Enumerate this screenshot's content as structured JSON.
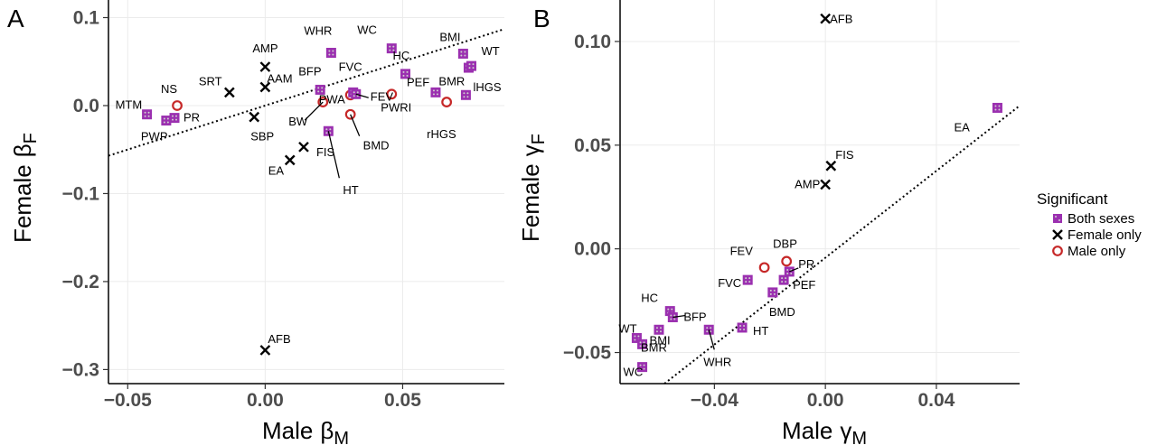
{
  "colors": {
    "both": "#9b30b0",
    "both_dot": "#cfcfcf",
    "female_only": "#000000",
    "male_only": "#c62828",
    "grid": "#ebebeb",
    "tick_text": "#4d4d4d"
  },
  "legend": {
    "title": "Significant",
    "items": [
      {
        "key": "both",
        "label": "Both sexes",
        "marker": "filled-square"
      },
      {
        "key": "female",
        "label": "Female only",
        "marker": "x-cross"
      },
      {
        "key": "male",
        "label": "Male only",
        "marker": "open-circle"
      }
    ],
    "placement": "right"
  },
  "chart_data": [
    {
      "panel": "A",
      "type": "scatter",
      "xlabel": "Male",
      "xlabel_symbol": "β",
      "xlabel_sub": "M",
      "ylabel": "Female",
      "ylabel_symbol": "β",
      "ylabel_sub": "F",
      "xlim": [
        -0.057,
        0.087
      ],
      "ylim": [
        -0.316,
        0.12
      ],
      "xticks": [
        -0.05,
        0,
        0.05
      ],
      "xtick_labels": [
        "−0.05",
        "0.00",
        "0.05"
      ],
      "yticks": [
        0.1,
        0,
        -0.1,
        -0.2,
        -0.3
      ],
      "ytick_labels": [
        "0.1",
        "0.0",
        "−0.1",
        "−0.2",
        "−0.3"
      ],
      "grid": true,
      "fit_line": {
        "style": "dotted",
        "x": [
          -0.057,
          0.087
        ],
        "y": [
          -0.057,
          0.087
        ]
      },
      "points": [
        {
          "label": "MTM",
          "x": -0.043,
          "y": -0.01,
          "group": "both"
        },
        {
          "label": "PWP",
          "x": -0.036,
          "y": -0.017,
          "group": "both"
        },
        {
          "label": "PR",
          "x": -0.033,
          "y": -0.014,
          "group": "both"
        },
        {
          "label": "NS",
          "x": -0.032,
          "y": 0.0,
          "group": "male"
        },
        {
          "label": "SRT",
          "x": -0.013,
          "y": 0.015,
          "group": "female"
        },
        {
          "label": "SBP",
          "x": -0.004,
          "y": -0.013,
          "group": "female"
        },
        {
          "label": "AMP",
          "x": 0.0,
          "y": 0.044,
          "group": "female"
        },
        {
          "label": "AAM",
          "x": 0.0,
          "y": 0.021,
          "group": "female"
        },
        {
          "label": "AFB",
          "x": 0.0,
          "y": -0.278,
          "group": "female"
        },
        {
          "label": "EA",
          "x": 0.009,
          "y": -0.062,
          "group": "female"
        },
        {
          "label": "FIS",
          "x": 0.014,
          "y": -0.047,
          "group": "female"
        },
        {
          "label": "WHR",
          "x": 0.024,
          "y": 0.06,
          "group": "both"
        },
        {
          "label": "BFP",
          "x": 0.02,
          "y": 0.018,
          "group": "both"
        },
        {
          "label": "BW",
          "x": 0.021,
          "y": 0.004,
          "group": "male"
        },
        {
          "label": "HT",
          "x": 0.023,
          "y": -0.029,
          "group": "both"
        },
        {
          "label": "FVC",
          "x": 0.031,
          "y": 0.012,
          "group": "male"
        },
        {
          "label": "PWA",
          "x": 0.032,
          "y": 0.015,
          "group": "both"
        },
        {
          "label": "FEV",
          "x": 0.033,
          "y": 0.013,
          "group": "both"
        },
        {
          "label": "BMD",
          "x": 0.031,
          "y": -0.01,
          "group": "male"
        },
        {
          "label": "WC",
          "x": 0.046,
          "y": 0.065,
          "group": "both"
        },
        {
          "label": "HC",
          "x": 0.051,
          "y": 0.036,
          "group": "both"
        },
        {
          "label": "PWRI",
          "x": 0.046,
          "y": 0.013,
          "group": "male"
        },
        {
          "label": "PEF",
          "x": 0.062,
          "y": 0.015,
          "group": "both"
        },
        {
          "label": "rHGS",
          "x": 0.066,
          "y": 0.004,
          "group": "male"
        },
        {
          "label": "BMI",
          "x": 0.072,
          "y": 0.059,
          "group": "both"
        },
        {
          "label": "WT",
          "x": 0.074,
          "y": 0.043,
          "group": "both"
        },
        {
          "label": "BMR",
          "x": 0.073,
          "y": 0.012,
          "group": "both"
        },
        {
          "label": "lHGS",
          "x": 0.075,
          "y": 0.045,
          "group": "both"
        }
      ]
    },
    {
      "panel": "B",
      "type": "scatter",
      "xlabel": "Male",
      "xlabel_symbol": "γ",
      "xlabel_sub": "M",
      "ylabel": "Female",
      "ylabel_symbol": "γ",
      "ylabel_sub": "F",
      "xlim": [
        -0.074,
        0.07
      ],
      "ylim": [
        -0.065,
        0.12
      ],
      "xticks": [
        -0.04,
        0,
        0.04
      ],
      "xtick_labels": [
        "−0.04",
        "0.00",
        "0.04"
      ],
      "yticks": [
        0.1,
        0.05,
        0,
        -0.05
      ],
      "ytick_labels": [
        "0.10",
        "0.05",
        "0.00",
        "−0.05"
      ],
      "grid": true,
      "fit_line": {
        "style": "dotted",
        "x": [
          -0.058,
          0.07
        ],
        "y": [
          -0.065,
          0.069
        ]
      },
      "points": [
        {
          "label": "AFB",
          "x": 0.0,
          "y": 0.111,
          "group": "female"
        },
        {
          "label": "EA",
          "x": 0.062,
          "y": 0.068,
          "group": "both"
        },
        {
          "label": "FIS",
          "x": 0.002,
          "y": 0.04,
          "group": "female"
        },
        {
          "label": "AMP",
          "x": 0.0,
          "y": 0.031,
          "group": "female"
        },
        {
          "label": "DBP",
          "x": -0.014,
          "y": -0.006,
          "group": "male"
        },
        {
          "label": "FEV",
          "x": -0.022,
          "y": -0.009,
          "group": "male"
        },
        {
          "label": "PR",
          "x": -0.013,
          "y": -0.011,
          "group": "both"
        },
        {
          "label": "PEF",
          "x": -0.015,
          "y": -0.015,
          "group": "both"
        },
        {
          "label": "FVC",
          "x": -0.028,
          "y": -0.015,
          "group": "both"
        },
        {
          "label": "BMD",
          "x": -0.019,
          "y": -0.021,
          "group": "both"
        },
        {
          "label": "HC",
          "x": -0.056,
          "y": -0.03,
          "group": "both"
        },
        {
          "label": "BFP",
          "x": -0.055,
          "y": -0.033,
          "group": "both"
        },
        {
          "label": "BMR",
          "x": -0.06,
          "y": -0.039,
          "group": "both"
        },
        {
          "label": "WHR",
          "x": -0.042,
          "y": -0.039,
          "group": "both"
        },
        {
          "label": "HT",
          "x": -0.03,
          "y": -0.038,
          "group": "both"
        },
        {
          "label": "WT",
          "x": -0.068,
          "y": -0.043,
          "group": "both"
        },
        {
          "label": "BMI",
          "x": -0.066,
          "y": -0.046,
          "group": "both"
        },
        {
          "label": "WC",
          "x": -0.066,
          "y": -0.057,
          "group": "both"
        }
      ]
    }
  ]
}
